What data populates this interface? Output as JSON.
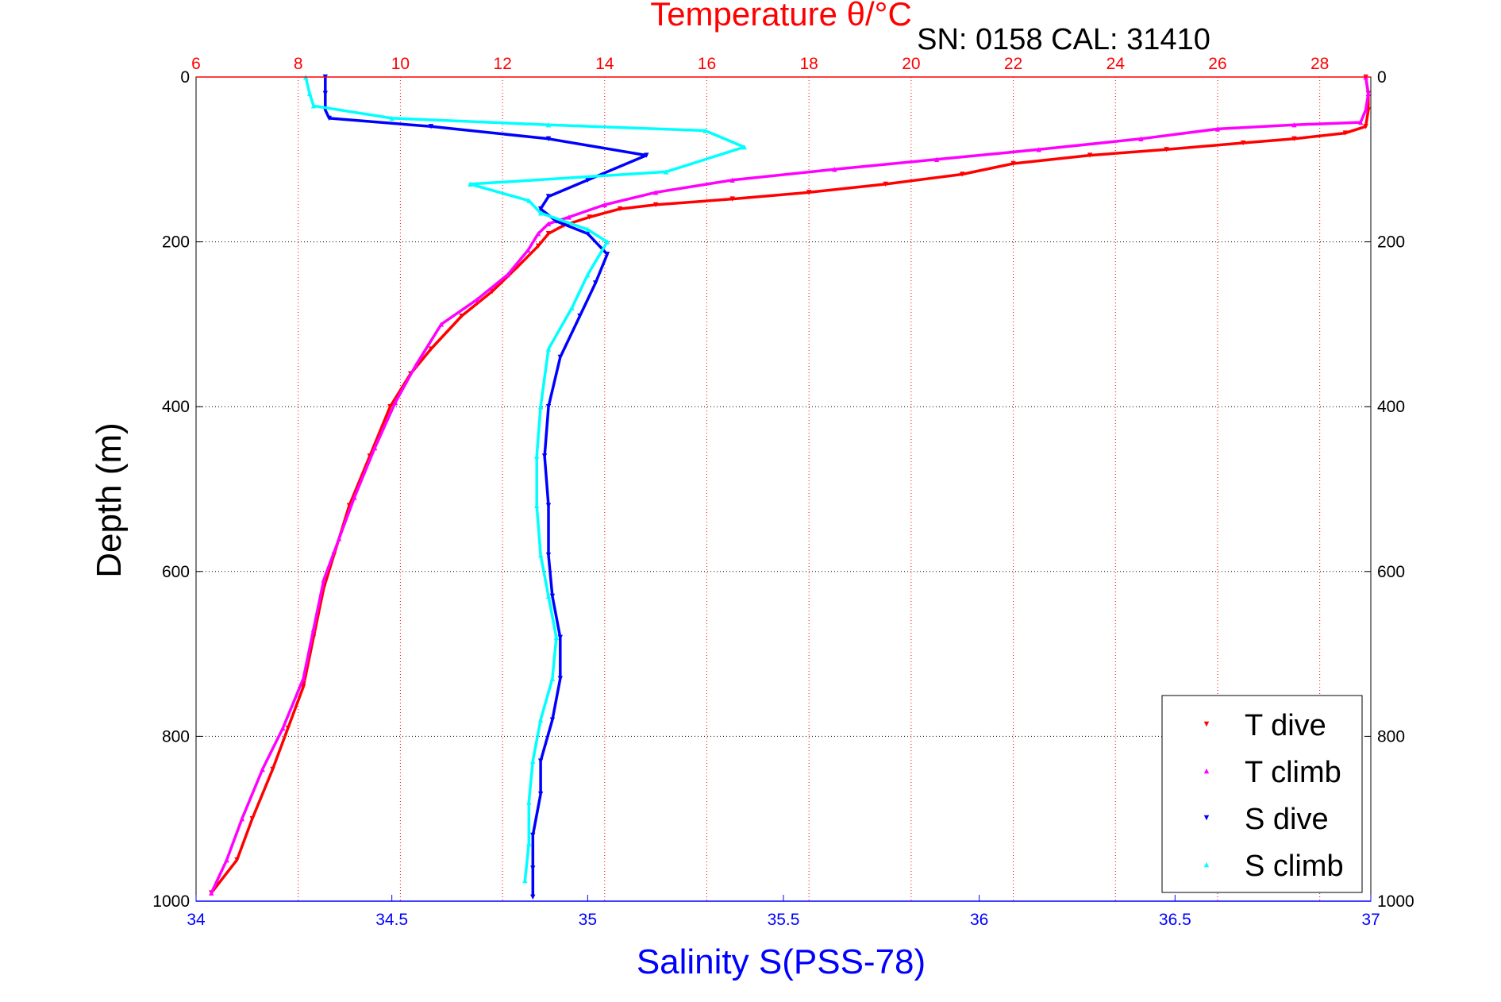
{
  "chart_data": {
    "type": "scatter",
    "title": "Temperature θ/°C",
    "subtitle": "SN: 0158  CAL: 31410",
    "ylabel": "Depth (m)",
    "xlabel_bottom": "Salinity S(PSS-78)",
    "xlabel_top": "Temperature θ/°C",
    "ylim": [
      0,
      1000
    ],
    "y_reversed": true,
    "x_bottom_lim": [
      34,
      37
    ],
    "x_top_lim": [
      6,
      29
    ],
    "y_ticks": [
      "0",
      "200",
      "400",
      "600",
      "800",
      "1000"
    ],
    "x_bottom_ticks": [
      "34",
      "34.5",
      "35",
      "35.5",
      "36",
      "36.5",
      "37"
    ],
    "x_top_ticks": [
      "6",
      "8",
      "10",
      "12",
      "14",
      "16",
      "18",
      "20",
      "22",
      "24",
      "26",
      "28"
    ],
    "grid": true,
    "legend_position": "bottom-right",
    "colors": {
      "temperature_axis": "#ff0000",
      "salinity_axis": "#0000ff",
      "grid_top": "#ff0000",
      "grid_h": "#000000"
    },
    "series": [
      {
        "name": "T dive",
        "axis": "top",
        "marker": "triangle-down",
        "color": "#ff0000",
        "points": [
          [
            28.9,
            0
          ],
          [
            28.95,
            20
          ],
          [
            28.95,
            40
          ],
          [
            28.9,
            60
          ],
          [
            28.5,
            68
          ],
          [
            27.5,
            75
          ],
          [
            26.5,
            80
          ],
          [
            25,
            88
          ],
          [
            23.5,
            95
          ],
          [
            22,
            105
          ],
          [
            21,
            118
          ],
          [
            19.5,
            130
          ],
          [
            18,
            140
          ],
          [
            16.5,
            148
          ],
          [
            15,
            155
          ],
          [
            14.3,
            160
          ],
          [
            13.7,
            170
          ],
          [
            13.2,
            180
          ],
          [
            12.9,
            190
          ],
          [
            12.7,
            205
          ],
          [
            12.3,
            230
          ],
          [
            11.8,
            260
          ],
          [
            11.2,
            290
          ],
          [
            10.6,
            330
          ],
          [
            10.2,
            360
          ],
          [
            9.8,
            400
          ],
          [
            9.4,
            460
          ],
          [
            9,
            520
          ],
          [
            8.7,
            580
          ],
          [
            8.5,
            620
          ],
          [
            8.3,
            680
          ],
          [
            8.1,
            740
          ],
          [
            7.8,
            790
          ],
          [
            7.5,
            840
          ],
          [
            7.1,
            900
          ],
          [
            6.8,
            950
          ],
          [
            6.3,
            990
          ]
        ]
      },
      {
        "name": "T climb",
        "axis": "top",
        "marker": "triangle-up",
        "color": "#ff00ff",
        "points": [
          [
            28.9,
            0
          ],
          [
            28.95,
            20
          ],
          [
            28.9,
            40
          ],
          [
            28.8,
            55
          ],
          [
            27.5,
            58
          ],
          [
            26,
            63
          ],
          [
            24.5,
            75
          ],
          [
            22.5,
            88
          ],
          [
            20.5,
            100
          ],
          [
            18.5,
            112
          ],
          [
            16.5,
            125
          ],
          [
            15,
            140
          ],
          [
            14,
            155
          ],
          [
            13.3,
            170
          ],
          [
            12.9,
            178
          ],
          [
            12.7,
            190
          ],
          [
            12.5,
            210
          ],
          [
            12.1,
            240
          ],
          [
            11.5,
            270
          ],
          [
            10.8,
            300
          ],
          [
            10.3,
            350
          ],
          [
            9.9,
            395
          ],
          [
            9.5,
            450
          ],
          [
            9.1,
            510
          ],
          [
            8.8,
            560
          ],
          [
            8.5,
            610
          ],
          [
            8.3,
            670
          ],
          [
            8.1,
            730
          ],
          [
            7.7,
            790
          ],
          [
            7.3,
            840
          ],
          [
            6.9,
            900
          ],
          [
            6.6,
            950
          ],
          [
            6.3,
            990
          ]
        ]
      },
      {
        "name": "S dive",
        "axis": "bottom",
        "marker": "triangle-down",
        "color": "#0000ff",
        "points": [
          [
            34.33,
            0
          ],
          [
            34.33,
            20
          ],
          [
            34.33,
            40
          ],
          [
            34.34,
            50
          ],
          [
            34.6,
            60
          ],
          [
            34.9,
            75
          ],
          [
            35.15,
            95
          ],
          [
            35.0,
            125
          ],
          [
            34.9,
            145
          ],
          [
            34.88,
            160
          ],
          [
            34.92,
            175
          ],
          [
            35.0,
            190
          ],
          [
            35.05,
            215
          ],
          [
            35.02,
            250
          ],
          [
            34.98,
            290
          ],
          [
            34.93,
            340
          ],
          [
            34.9,
            400
          ],
          [
            34.89,
            460
          ],
          [
            34.9,
            520
          ],
          [
            34.9,
            580
          ],
          [
            34.91,
            630
          ],
          [
            34.93,
            680
          ],
          [
            34.93,
            730
          ],
          [
            34.91,
            780
          ],
          [
            34.88,
            830
          ],
          [
            34.88,
            870
          ],
          [
            34.86,
            920
          ],
          [
            34.86,
            960
          ],
          [
            34.86,
            995
          ]
        ]
      },
      {
        "name": "S climb",
        "axis": "bottom",
        "marker": "triangle-up",
        "color": "#00ffff",
        "points": [
          [
            34.28,
            0
          ],
          [
            34.29,
            20
          ],
          [
            34.3,
            35
          ],
          [
            34.5,
            50
          ],
          [
            34.9,
            58
          ],
          [
            35.3,
            65
          ],
          [
            35.4,
            85
          ],
          [
            35.2,
            115
          ],
          [
            34.7,
            130
          ],
          [
            34.85,
            150
          ],
          [
            34.88,
            165
          ],
          [
            35.0,
            185
          ],
          [
            35.05,
            200
          ],
          [
            35.0,
            240
          ],
          [
            34.96,
            280
          ],
          [
            34.9,
            330
          ],
          [
            34.88,
            400
          ],
          [
            34.87,
            460
          ],
          [
            34.87,
            520
          ],
          [
            34.88,
            580
          ],
          [
            34.9,
            630
          ],
          [
            34.92,
            680
          ],
          [
            34.91,
            730
          ],
          [
            34.88,
            780
          ],
          [
            34.86,
            830
          ],
          [
            34.85,
            880
          ],
          [
            34.85,
            930
          ],
          [
            34.84,
            975
          ]
        ]
      }
    ]
  }
}
